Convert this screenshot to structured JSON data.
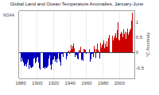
{
  "chart_data": {
    "type": "bar",
    "title": "Global Land and Ocean Temperature Anomalies, January-June",
    "ylabel": "°C Anomaly",
    "x": [
      1880,
      1881,
      1882,
      1883,
      1884,
      1885,
      1886,
      1887,
      1888,
      1889,
      1890,
      1891,
      1892,
      1893,
      1894,
      1895,
      1896,
      1897,
      1898,
      1899,
      1900,
      1901,
      1902,
      1903,
      1904,
      1905,
      1906,
      1907,
      1908,
      1909,
      1910,
      1911,
      1912,
      1913,
      1914,
      1915,
      1916,
      1917,
      1918,
      1919,
      1920,
      1921,
      1922,
      1923,
      1924,
      1925,
      1926,
      1927,
      1928,
      1929,
      1930,
      1931,
      1932,
      1933,
      1934,
      1935,
      1936,
      1937,
      1938,
      1939,
      1940,
      1941,
      1942,
      1943,
      1944,
      1945,
      1946,
      1947,
      1948,
      1949,
      1950,
      1951,
      1952,
      1953,
      1954,
      1955,
      1956,
      1957,
      1958,
      1959,
      1960,
      1961,
      1962,
      1963,
      1964,
      1965,
      1966,
      1967,
      1968,
      1969,
      1970,
      1971,
      1972,
      1973,
      1974,
      1975,
      1976,
      1977,
      1978,
      1979,
      1980,
      1981,
      1982,
      1983,
      1984,
      1985,
      1986,
      1987,
      1988,
      1989,
      1990,
      1991,
      1992,
      1993,
      1994,
      1995,
      1996,
      1997,
      1998,
      1999,
      2000,
      2001,
      2002,
      2003,
      2004,
      2005,
      2006,
      2007,
      2008,
      2009,
      2010,
      2011,
      2012,
      2013,
      2014,
      2015,
      2016
    ],
    "values": [
      -0.3,
      -0.18,
      -0.29,
      -0.32,
      -0.44,
      -0.44,
      -0.38,
      -0.46,
      -0.34,
      -0.22,
      -0.53,
      -0.42,
      -0.48,
      -0.52,
      -0.48,
      -0.46,
      -0.2,
      -0.18,
      -0.36,
      -0.3,
      -0.18,
      -0.14,
      -0.32,
      -0.51,
      -0.57,
      -0.42,
      -0.24,
      -0.52,
      -0.5,
      -0.54,
      -0.5,
      -0.52,
      -0.5,
      -0.44,
      -0.2,
      -0.1,
      -0.42,
      -0.56,
      -0.38,
      -0.26,
      -0.24,
      -0.12,
      -0.3,
      -0.24,
      -0.32,
      -0.2,
      -0.02,
      -0.24,
      -0.3,
      -0.44,
      -0.06,
      -0.06,
      -0.14,
      -0.22,
      -0.12,
      -0.22,
      -0.12,
      0.04,
      0.06,
      -0.04,
      0.06,
      0.24,
      0.12,
      0.2,
      0.3,
      0.14,
      -0.14,
      -0.08,
      -0.1,
      -0.2,
      -0.24,
      0.08,
      0.06,
      0.18,
      -0.26,
      -0.22,
      -0.28,
      0.1,
      0.12,
      0.08,
      -0.04,
      0.08,
      0.06,
      0.1,
      -0.3,
      -0.22,
      -0.04,
      -0.04,
      -0.14,
      0.2,
      0.12,
      -0.18,
      0.1,
      0.3,
      0.08,
      0.04,
      -0.2,
      0.32,
      0.16,
      0.24,
      0.3,
      0.38,
      0.14,
      0.3,
      0.18,
      0.36,
      0.18,
      0.46,
      0.58,
      0.2,
      0.28,
      0.54,
      0.38,
      0.46,
      0.54,
      0.62,
      0.46,
      0.74,
      0.98,
      0.42,
      0.38,
      0.6,
      0.68,
      0.62,
      0.5,
      0.76,
      0.6,
      0.68,
      0.44,
      0.64,
      0.78,
      0.58,
      0.64,
      0.72,
      0.78,
      1.04,
      1.3
    ],
    "colors": [
      "#0000bb",
      "#0000bb",
      "#0000bb",
      "#0000bb",
      "#0000bb",
      "#0000bb",
      "#0000bb",
      "#0000bb",
      "#0000bb",
      "#0000bb",
      "#0000bb",
      "#0000bb",
      "#0000bb",
      "#0000bb",
      "#0000bb",
      "#0000bb",
      "#0000bb",
      "#0000bb",
      "#0000bb",
      "#0000bb",
      "#0000bb",
      "#0000bb",
      "#0000bb",
      "#0000bb",
      "#0000bb",
      "#0000bb",
      "#0000bb",
      "#0000bb",
      "#0000bb",
      "#0000bb",
      "#0000bb",
      "#0000bb",
      "#0000bb",
      "#0000bb",
      "#0000bb",
      "#0000bb",
      "#0000bb",
      "#0000bb",
      "#0000bb",
      "#0000bb",
      "#0000bb",
      "#0000bb",
      "#0000bb",
      "#0000bb",
      "#0000bb",
      "#0000bb",
      "#0000bb",
      "#0000bb",
      "#0000bb",
      "#0000bb",
      "#0000bb",
      "#0000bb",
      "#0000bb",
      "#0000bb",
      "#0000bb",
      "#0000bb",
      "#0000bb",
      "#cc0000",
      "#cc0000",
      "#0000bb",
      "#cc0000",
      "#cc0000",
      "#cc0000",
      "#cc0000",
      "#cc0000",
      "#cc0000",
      "#0000bb",
      "#0000bb",
      "#0000bb",
      "#0000bb",
      "#0000bb",
      "#cc0000",
      "#cc0000",
      "#cc0000",
      "#0000bb",
      "#0000bb",
      "#0000bb",
      "#cc0000",
      "#cc0000",
      "#cc0000",
      "#0000bb",
      "#cc0000",
      "#cc0000",
      "#cc0000",
      "#0000bb",
      "#0000bb",
      "#0000bb",
      "#0000bb",
      "#0000bb",
      "#cc0000",
      "#cc0000",
      "#0000bb",
      "#cc0000",
      "#cc0000",
      "#cc0000",
      "#cc0000",
      "#0000bb",
      "#cc0000",
      "#cc0000",
      "#cc0000",
      "#cc0000",
      "#cc0000",
      "#cc0000",
      "#cc0000",
      "#cc0000",
      "#cc0000",
      "#cc0000",
      "#cc0000",
      "#cc0000",
      "#cc0000",
      "#cc0000",
      "#cc0000",
      "#cc0000",
      "#cc0000",
      "#cc0000",
      "#cc0000",
      "#cc0000",
      "#cc0000",
      "#cc0000",
      "#cc0000",
      "#cc0000",
      "#cc0000",
      "#cc0000",
      "#cc0000",
      "#cc0000",
      "#cc0000",
      "#cc0000",
      "#cc0000",
      "#cc0000",
      "#cc0000",
      "#cc0000",
      "#cc0000",
      "#cc0000",
      "#cc0000",
      "#cc0000",
      "#cc0000",
      "#cc0000"
    ],
    "xlim": [
      1878,
      2018
    ],
    "xticks": [
      1880,
      1900,
      1920,
      1940,
      1960,
      1980,
      2000
    ],
    "ylim": [
      -0.85,
      1.35
    ],
    "yticks": [
      -0.5,
      0,
      0.5,
      1
    ],
    "grid": "x",
    "annotations": [
      "NOAA"
    ]
  }
}
